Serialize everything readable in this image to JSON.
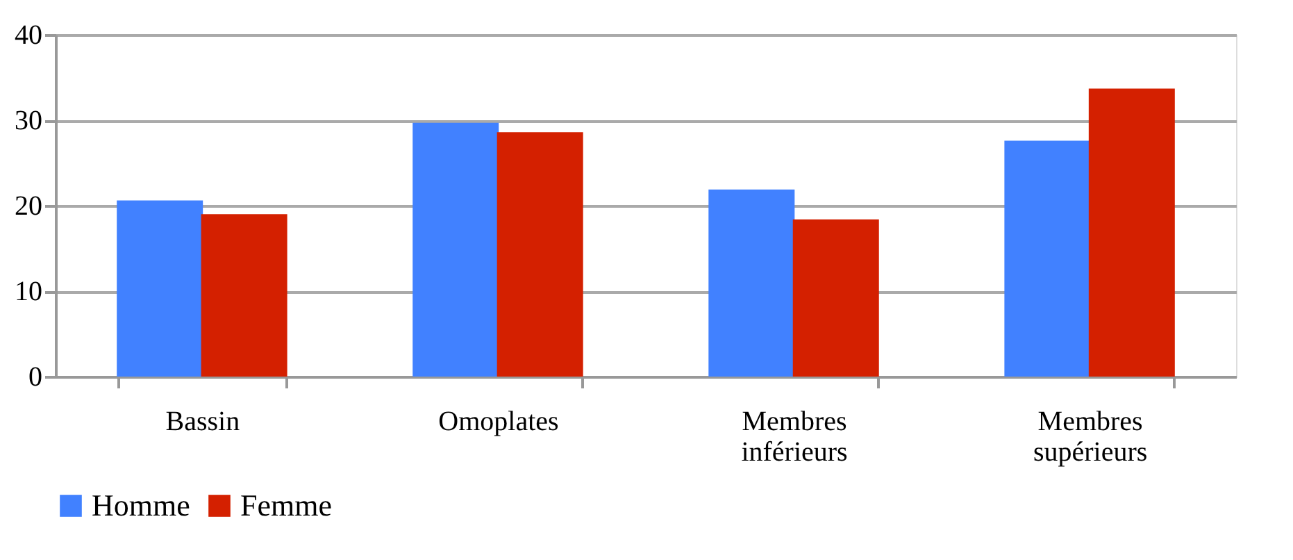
{
  "chart_data": {
    "type": "bar",
    "categories": [
      "Bassin",
      "Omoplates",
      "Membres inférieurs",
      "Membres supérieurs"
    ],
    "series": [
      {
        "name": "Homme",
        "color": "#4181ff",
        "values": [
          20.6,
          29.7,
          21.9,
          27.6
        ]
      },
      {
        "name": "Femme",
        "color": "#d42000",
        "values": [
          19.0,
          28.6,
          18.4,
          33.7
        ]
      }
    ],
    "ylim": [
      0,
      40
    ],
    "yticks": [
      0,
      10,
      20,
      30,
      40
    ],
    "grid": "y",
    "legend": "bottom"
  }
}
